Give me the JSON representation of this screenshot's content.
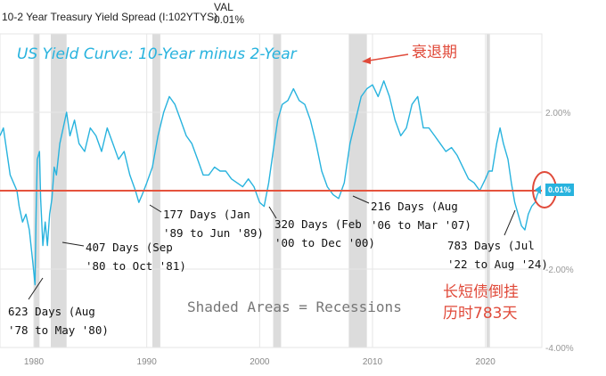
{
  "header": {
    "series_name": "10-2 Year Treasury Yield Spread (I:102YTYS)",
    "col_label": "VAL",
    "col_value": "0.01%"
  },
  "annotations_text": {
    "chart_title": "US Yield Curve: 10-Year minus 2-Year",
    "recession_label_cn": "衰退期",
    "shaded_note": "Shaded Areas = Recessions",
    "inversion_note_cn_line1": "长短债倒挂",
    "inversion_note_cn_line2": "历时783天",
    "current_value_badge": "0.01%"
  },
  "notes": [
    {
      "line1": "623 Days (Aug",
      "line2": "'78 to May '80)"
    },
    {
      "line1": "407 Days (Sep",
      "line2": "'80 to Oct '81)"
    },
    {
      "line1": "177 Days (Jan",
      "line2": "'89 to Jun '89)"
    },
    {
      "line1": "320 Days (Feb",
      "line2": "'00 to Dec '00)"
    },
    {
      "line1": "216 Days (Aug",
      "line2": "'06 to Mar '07)"
    },
    {
      "line1": "783 Days (Jul",
      "line2": "'22 to Aug '24)"
    }
  ],
  "colors": {
    "line": "#28b3de",
    "zero_line": "#e5533d",
    "recession_shade": "#dcdcdc",
    "annotation_red": "#e04a3a",
    "grid": "#e6e6e6"
  },
  "chart_data": {
    "type": "line",
    "title": "US Yield Curve: 10-Year minus 2-Year",
    "xlabel": "",
    "ylabel": "",
    "xlim": [
      1977,
      2025
    ],
    "ylim": [
      -4,
      4
    ],
    "y_ticks": [
      2,
      -2,
      -4
    ],
    "y_tick_labels": [
      "2.00%",
      "-2.00%",
      "-4.00%"
    ],
    "x_ticks": [
      1980,
      1990,
      2000,
      2010,
      2020
    ],
    "x_tick_labels": [
      "1980",
      "1990",
      "2000",
      "2010",
      "2020"
    ],
    "grid": true,
    "recessions": [
      [
        1980.0,
        1980.5
      ],
      [
        1981.5,
        1982.9
      ],
      [
        1990.5,
        1991.2
      ],
      [
        2001.2,
        2001.9
      ],
      [
        2007.9,
        2009.5
      ],
      [
        2020.1,
        2020.4
      ]
    ],
    "series": [
      {
        "x": [
          1977.0,
          1977.3,
          1977.6,
          1977.9,
          1978.2,
          1978.5,
          1978.7,
          1979.0,
          1979.3,
          1979.6,
          1979.9,
          1980.1,
          1980.2,
          1980.3,
          1980.5,
          1980.6,
          1980.8,
          1981.0,
          1981.2,
          1981.4,
          1981.6,
          1981.8,
          1982.0,
          1982.3,
          1982.6,
          1982.9,
          1983.2,
          1983.6,
          1984.0,
          1984.5,
          1985.0,
          1985.5,
          1986.0,
          1986.5,
          1987.0,
          1987.5,
          1988.0,
          1988.5,
          1989.0,
          1989.3,
          1989.6,
          1990.0,
          1990.5,
          1991.0,
          1991.5,
          1992.0,
          1992.5,
          1993.0,
          1993.5,
          1994.0,
          1994.5,
          1995.0,
          1995.5,
          1996.0,
          1996.5,
          1997.0,
          1997.5,
          1998.0,
          1998.5,
          1999.0,
          1999.5,
          2000.0,
          2000.4,
          2000.8,
          2001.2,
          2001.6,
          2002.0,
          2002.5,
          2003.0,
          2003.5,
          2004.0,
          2004.5,
          2005.0,
          2005.5,
          2006.0,
          2006.5,
          2007.0,
          2007.5,
          2008.0,
          2008.5,
          2009.0,
          2009.5,
          2010.0,
          2010.5,
          2011.0,
          2011.5,
          2012.0,
          2012.5,
          2013.0,
          2013.5,
          2014.0,
          2014.5,
          2015.0,
          2015.5,
          2016.0,
          2016.5,
          2017.0,
          2017.5,
          2018.0,
          2018.5,
          2019.0,
          2019.5,
          2020.0,
          2020.3,
          2020.6,
          2021.0,
          2021.3,
          2021.6,
          2022.0,
          2022.3,
          2022.6,
          2022.9,
          2023.2,
          2023.5,
          2023.8,
          2024.1,
          2024.4,
          2024.6,
          2024.8
        ],
        "values": [
          1.4,
          1.6,
          1.0,
          0.4,
          0.2,
          0.0,
          -0.4,
          -0.8,
          -0.6,
          -1.0,
          -1.8,
          -2.4,
          -0.6,
          0.8,
          1.0,
          -0.2,
          -1.4,
          -0.8,
          -1.4,
          -0.6,
          -0.2,
          0.6,
          0.4,
          1.2,
          1.6,
          2.0,
          1.4,
          1.8,
          1.2,
          1.0,
          1.6,
          1.4,
          1.0,
          1.6,
          1.2,
          0.8,
          1.0,
          0.4,
          0.0,
          -0.3,
          -0.1,
          0.2,
          0.6,
          1.4,
          2.0,
          2.4,
          2.2,
          1.8,
          1.4,
          1.2,
          0.8,
          0.4,
          0.4,
          0.6,
          0.5,
          0.5,
          0.3,
          0.2,
          0.1,
          0.3,
          0.1,
          -0.3,
          -0.4,
          0.2,
          1.0,
          1.8,
          2.2,
          2.3,
          2.6,
          2.3,
          2.2,
          1.8,
          1.2,
          0.5,
          0.1,
          -0.1,
          -0.2,
          0.2,
          1.2,
          1.8,
          2.4,
          2.6,
          2.7,
          2.4,
          2.8,
          2.4,
          1.8,
          1.4,
          1.6,
          2.2,
          2.4,
          1.6,
          1.6,
          1.4,
          1.2,
          1.0,
          1.1,
          0.9,
          0.6,
          0.3,
          0.2,
          0.0,
          0.3,
          0.5,
          0.5,
          1.2,
          1.6,
          1.2,
          0.8,
          0.2,
          -0.3,
          -0.6,
          -0.9,
          -1.0,
          -0.6,
          -0.4,
          -0.3,
          -0.1,
          0.01
        ]
      }
    ]
  }
}
